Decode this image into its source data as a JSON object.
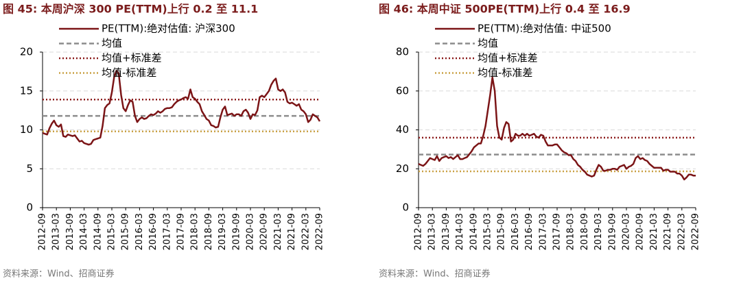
{
  "chart_data": [
    {
      "type": "line",
      "title": "图 45:  本周沪深 300 PE(TTM)上行 0.2 至 11.1",
      "source": "资料来源：Wind、招商证券",
      "categories": [
        "2012-09",
        null,
        null,
        null,
        null,
        null,
        "2013-03",
        null,
        null,
        null,
        null,
        null,
        "2013-09",
        null,
        null,
        null,
        null,
        null,
        "2014-03",
        null,
        null,
        null,
        null,
        null,
        "2014-09",
        null,
        null,
        null,
        null,
        null,
        "2015-03",
        null,
        null,
        null,
        null,
        null,
        "2015-09",
        null,
        null,
        null,
        null,
        null,
        "2016-03",
        null,
        null,
        null,
        null,
        null,
        "2016-09",
        null,
        null,
        null,
        null,
        null,
        "2017-03",
        null,
        null,
        null,
        null,
        null,
        "2017-09",
        null,
        null,
        null,
        null,
        null,
        "2018-03",
        null,
        null,
        null,
        null,
        null,
        "2018-09",
        null,
        null,
        null,
        null,
        null,
        "2019-03",
        null,
        null,
        null,
        null,
        null,
        "2019-09",
        null,
        null,
        null,
        null,
        null,
        "2020-03",
        null,
        null,
        null,
        null,
        null,
        "2020-09",
        null,
        null,
        null,
        null,
        null,
        "2021-03",
        null,
        null,
        null,
        null,
        null,
        "2021-09",
        null,
        null,
        null,
        null,
        null,
        "2022-03",
        null,
        null,
        null,
        null,
        null,
        "2022-09"
      ],
      "series": [
        {
          "name": "PE(TTM):绝对估值: 沪深300",
          "color": "#7b1416",
          "values": [
            9.6,
            9.5,
            9.4,
            10.2,
            10.8,
            11.2,
            10.6,
            10.4,
            10.7,
            9.2,
            9.1,
            9.4,
            9.3,
            9.2,
            9.3,
            8.9,
            8.5,
            8.6,
            8.3,
            8.2,
            8.1,
            8.2,
            8.7,
            8.8,
            8.9,
            9.0,
            10.5,
            12.8,
            13.2,
            13.4,
            14.8,
            16.8,
            17.6,
            17.2,
            14.5,
            12.8,
            12.4,
            13.2,
            13.8,
            13.6,
            11.8,
            11.0,
            11.4,
            11.6,
            11.4,
            11.5,
            11.8,
            12.0,
            11.9,
            12.1,
            12.4,
            12.2,
            12.4,
            12.7,
            12.8,
            12.8,
            12.9,
            13.3,
            13.6,
            13.8,
            13.9,
            14.1,
            14.2,
            14.0,
            15.2,
            14.2,
            14.0,
            13.6,
            13.3,
            12.4,
            11.9,
            11.4,
            11.2,
            10.6,
            10.5,
            10.3,
            10.4,
            11.6,
            12.6,
            13.0,
            11.9,
            12.0,
            12.1,
            11.8,
            12.0,
            12.0,
            11.8,
            12.4,
            12.6,
            12.2,
            11.4,
            12.0,
            11.9,
            12.5,
            14.2,
            14.4,
            14.2,
            14.6,
            15.0,
            15.8,
            16.3,
            16.6,
            15.2,
            15.0,
            15.2,
            14.8,
            13.6,
            13.4,
            13.5,
            13.3,
            13.1,
            13.3,
            12.6,
            12.4,
            12.0,
            11.0,
            11.3,
            12.0,
            11.8,
            11.6,
            11.1
          ]
        }
      ],
      "reference_lines": [
        {
          "name": "均值",
          "value": 11.8,
          "color": "#8c8c8c",
          "style": "dashed"
        },
        {
          "name": "均值+标准差",
          "value": 13.9,
          "color": "#8b1a1a",
          "style": "dotted"
        },
        {
          "name": "均值-标准差",
          "value": 9.8,
          "color": "#c9a043",
          "style": "dotted"
        }
      ],
      "ylim": [
        0,
        20
      ],
      "yticks": [
        0,
        5,
        10,
        15,
        20
      ],
      "grid": true,
      "legend": "upper left"
    },
    {
      "type": "line",
      "title": "图 46:  本周中证 500PE(TTM)上行 0.4 至 16.9",
      "source": "资料来源：Wind、招商证券",
      "categories": [
        "2012-09",
        null,
        null,
        null,
        null,
        null,
        "2013-03",
        null,
        null,
        null,
        null,
        null,
        "2013-09",
        null,
        null,
        null,
        null,
        null,
        "2014-03",
        null,
        null,
        null,
        null,
        null,
        "2014-09",
        null,
        null,
        null,
        null,
        null,
        "2015-03",
        null,
        null,
        null,
        null,
        null,
        "2015-09",
        null,
        null,
        null,
        null,
        null,
        "2016-03",
        null,
        null,
        null,
        null,
        null,
        "2016-09",
        null,
        null,
        null,
        null,
        null,
        "2017-03",
        null,
        null,
        null,
        null,
        null,
        "2017-09",
        null,
        null,
        null,
        null,
        null,
        "2018-03",
        null,
        null,
        null,
        null,
        null,
        "2018-09",
        null,
        null,
        null,
        null,
        null,
        "2019-03",
        null,
        null,
        null,
        null,
        null,
        "2019-09",
        null,
        null,
        null,
        null,
        null,
        "2020-03",
        null,
        null,
        null,
        null,
        null,
        "2020-09",
        null,
        null,
        null,
        null,
        null,
        "2021-03",
        null,
        null,
        null,
        null,
        null,
        "2021-09",
        null,
        null,
        null,
        null,
        null,
        "2022-03",
        null,
        null,
        null,
        null,
        null,
        "2022-09"
      ],
      "series": [
        {
          "name": "PE(TTM):绝对估值: 中证500",
          "color": "#7b1416",
          "values": [
            22.5,
            22,
            21.5,
            22.5,
            24,
            25.5,
            25,
            24.5,
            26.5,
            24,
            25.5,
            26,
            26.5,
            25.5,
            26,
            25,
            26,
            27,
            25,
            25,
            25.5,
            26,
            27.5,
            29,
            31,
            32,
            33,
            33,
            37,
            42,
            50,
            58,
            67,
            60,
            42,
            36,
            35,
            41,
            44,
            43,
            34,
            35,
            38,
            37,
            37,
            38,
            37,
            38,
            37,
            37.5,
            38,
            36.5,
            36,
            37.5,
            37,
            34,
            32,
            32,
            32,
            32.5,
            32.5,
            31,
            29.5,
            28.5,
            28,
            27,
            27,
            25,
            24,
            22,
            21,
            19.5,
            18.5,
            17,
            16.5,
            16,
            16.5,
            19.5,
            22,
            21,
            19,
            19,
            19.5,
            19.5,
            20,
            20,
            19.5,
            21,
            21.5,
            22,
            20,
            21,
            21.5,
            22.5,
            25.5,
            26.5,
            25,
            25.5,
            24.5,
            24,
            22.5,
            21.5,
            20.5,
            20.5,
            20.5,
            20.5,
            19,
            19.5,
            19.5,
            18.5,
            18.5,
            18.5,
            17.5,
            17.5,
            16.5,
            14.5,
            15.5,
            17,
            17,
            16.5,
            16.5
          ]
        }
      ],
      "reference_lines": [
        {
          "name": "均值",
          "value": 27.3,
          "color": "#8c8c8c",
          "style": "dashed"
        },
        {
          "name": "均值+标准差",
          "value": 36,
          "color": "#8b1a1a",
          "style": "dotted"
        },
        {
          "name": "均值-标准差",
          "value": 18.7,
          "color": "#c9a043",
          "style": "dotted"
        }
      ],
      "ylim": [
        0,
        80
      ],
      "yticks": [
        0,
        20,
        40,
        60,
        80
      ],
      "grid": true,
      "legend": "upper left"
    }
  ]
}
